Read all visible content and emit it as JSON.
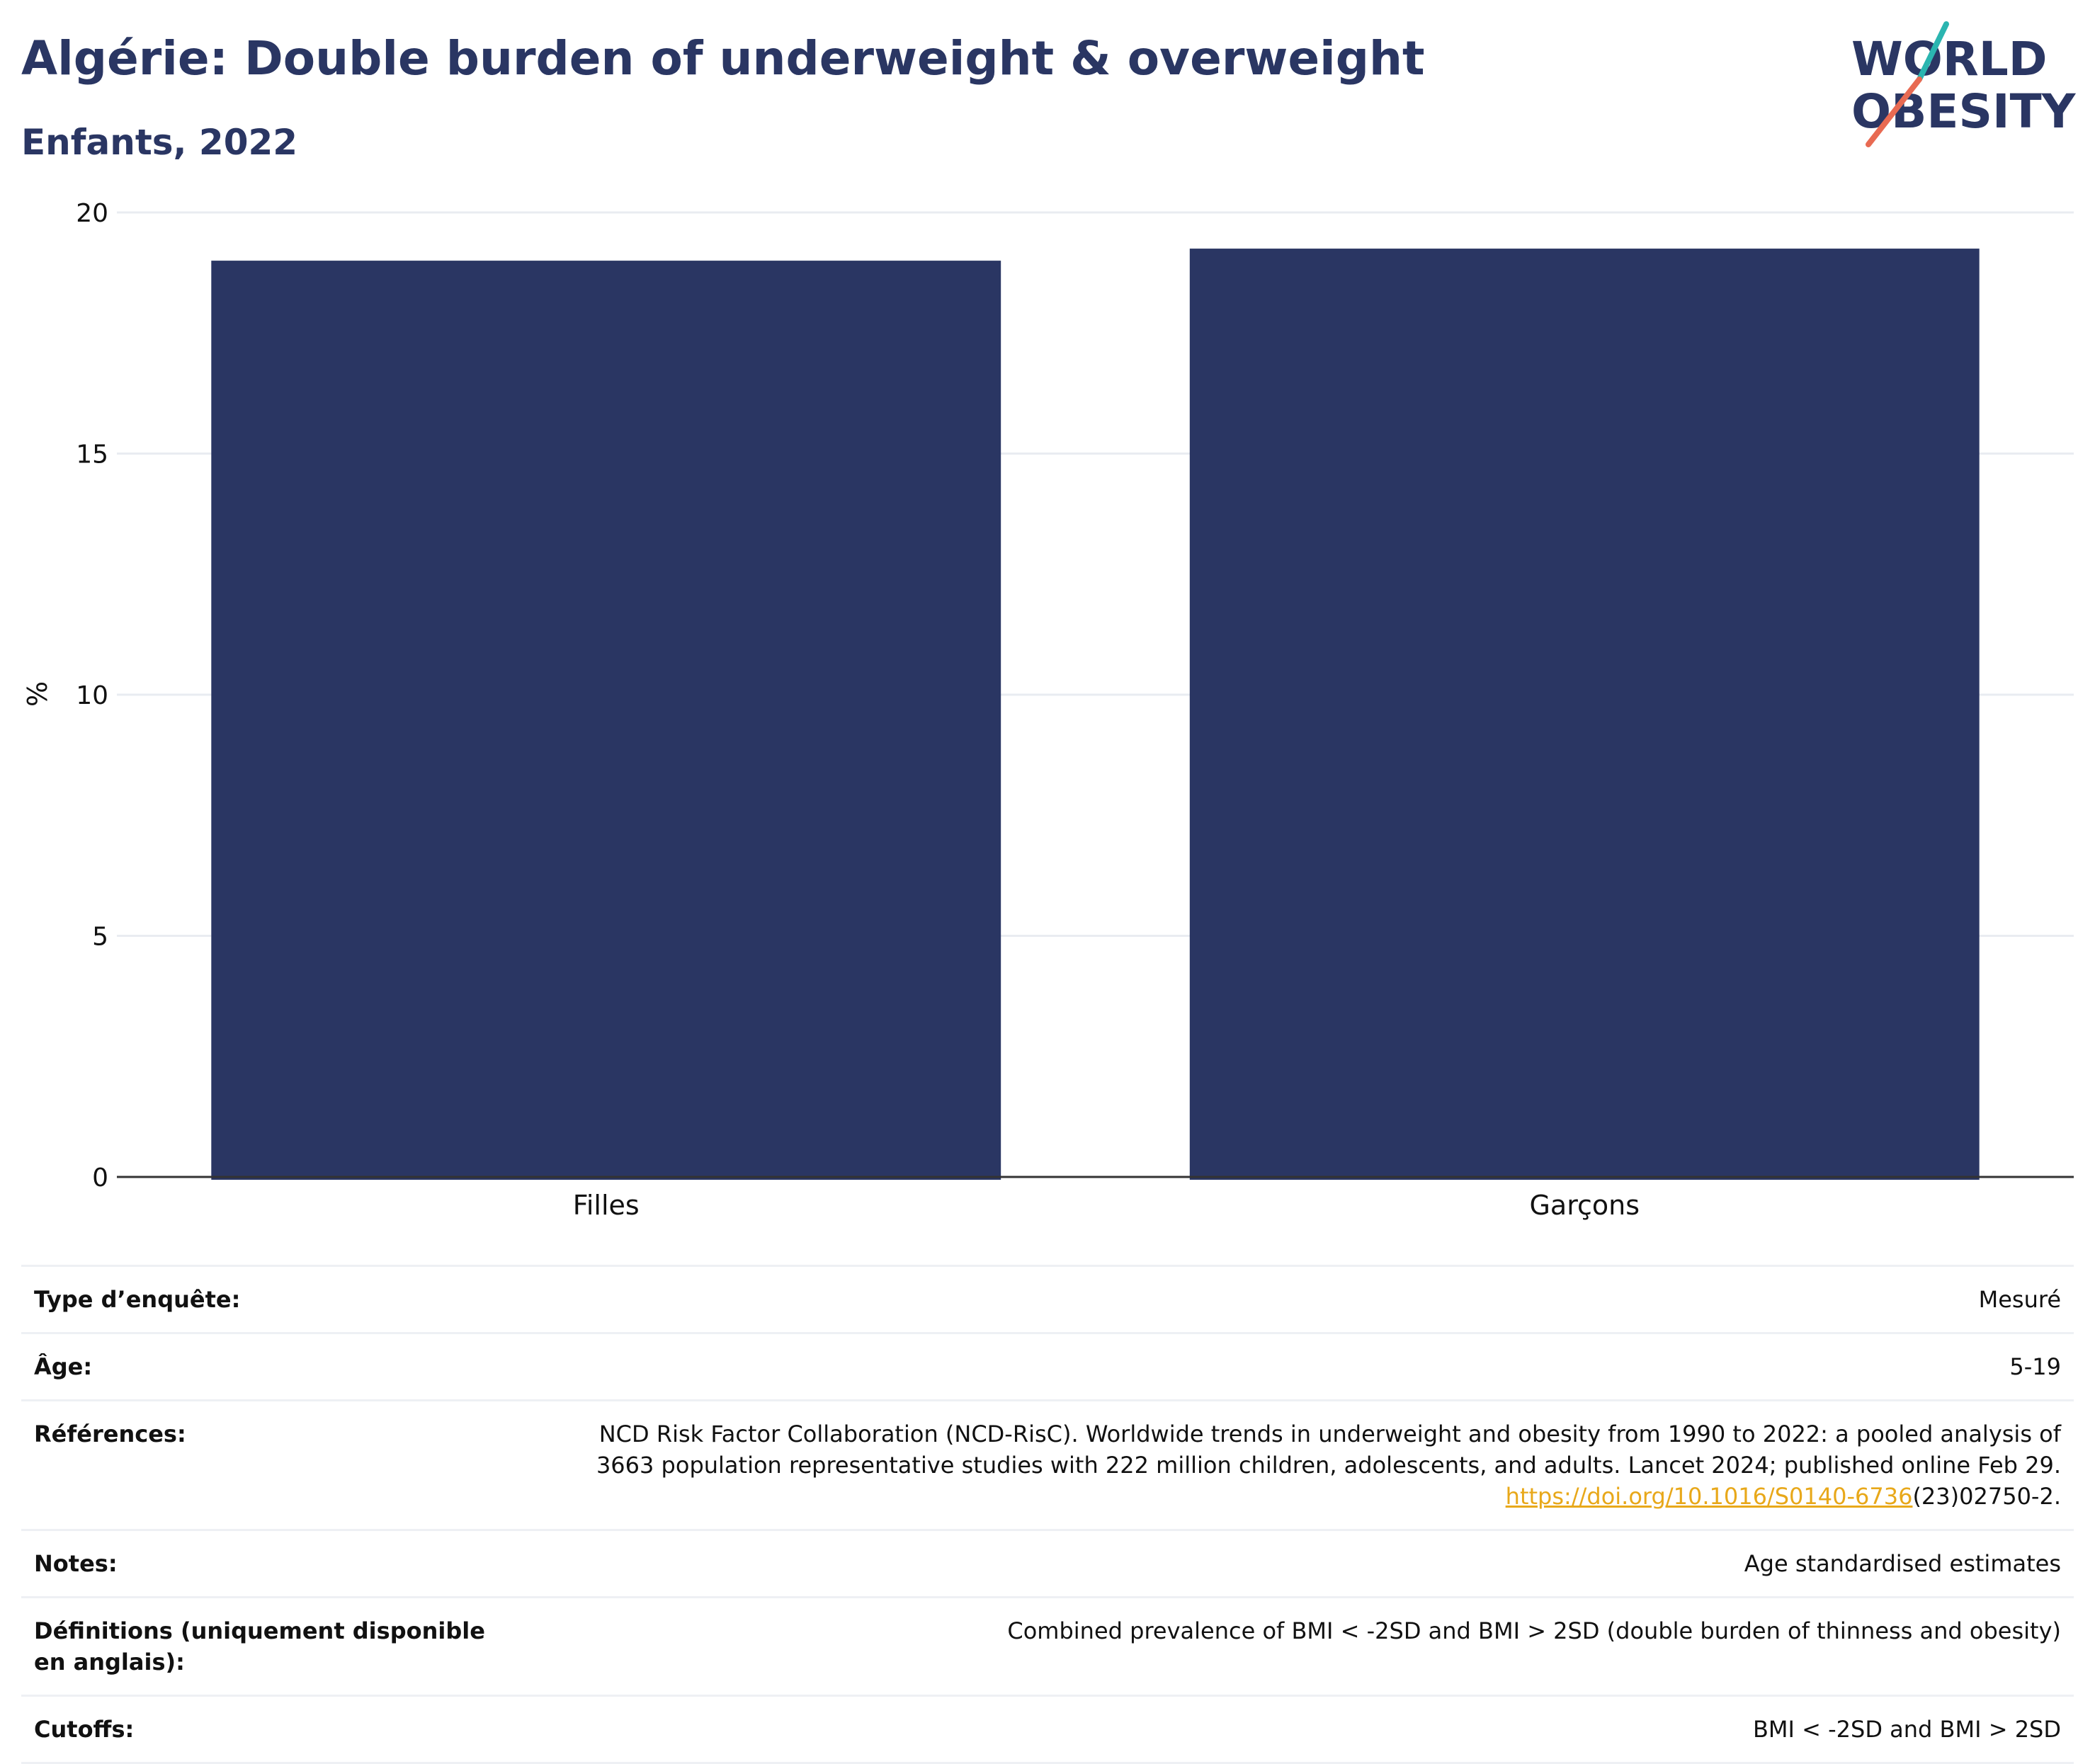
{
  "header": {
    "title": "Algérie: Double burden of underweight & overweight",
    "subtitle": "Enfants, 2022"
  },
  "logo": {
    "line1": "WORLD",
    "line2": "OBESITY"
  },
  "colors": {
    "bar": "#2a3663",
    "title": "#2a3663",
    "link": "#e8a81a",
    "logo_teal": "#2bb5b0",
    "logo_coral": "#e86a52"
  },
  "chart_data": {
    "type": "bar",
    "categories": [
      "Filles",
      "Garçons"
    ],
    "values": [
      19.0,
      19.25
    ],
    "ylabel": "%",
    "ylim": [
      0,
      20
    ],
    "yticks": [
      0,
      5,
      10,
      15,
      20
    ],
    "grid": true
  },
  "info": {
    "survey_type": {
      "label": "Type d’enquête:",
      "value": "Mesuré"
    },
    "age": {
      "label": "Âge:",
      "value": "5-19"
    },
    "references": {
      "label": "Références:",
      "line1": "NCD Risk Factor Collaboration (NCD-RisC). Worldwide trends in underweight and obesity from 1990 to 2022: a pooled analysis of",
      "line2": "3663 population representative studies with 222 million children, adolescents, and adults. Lancet 2024; published online Feb 29.",
      "link": "https://doi.org/10.1016/S0140-6736",
      "link_suffix": "(23)02750-2."
    },
    "notes": {
      "label": "Notes:",
      "value": "Age standardised estimates"
    },
    "definitions": {
      "label": "Définitions (uniquement disponible en anglais):",
      "value": "Combined prevalence of BMI < -2SD and BMI > 2SD (double burden of thinness and obesity)"
    },
    "cutoffs": {
      "label": "Cutoffs:",
      "value": "BMI < -2SD and BMI > 2SD"
    }
  }
}
